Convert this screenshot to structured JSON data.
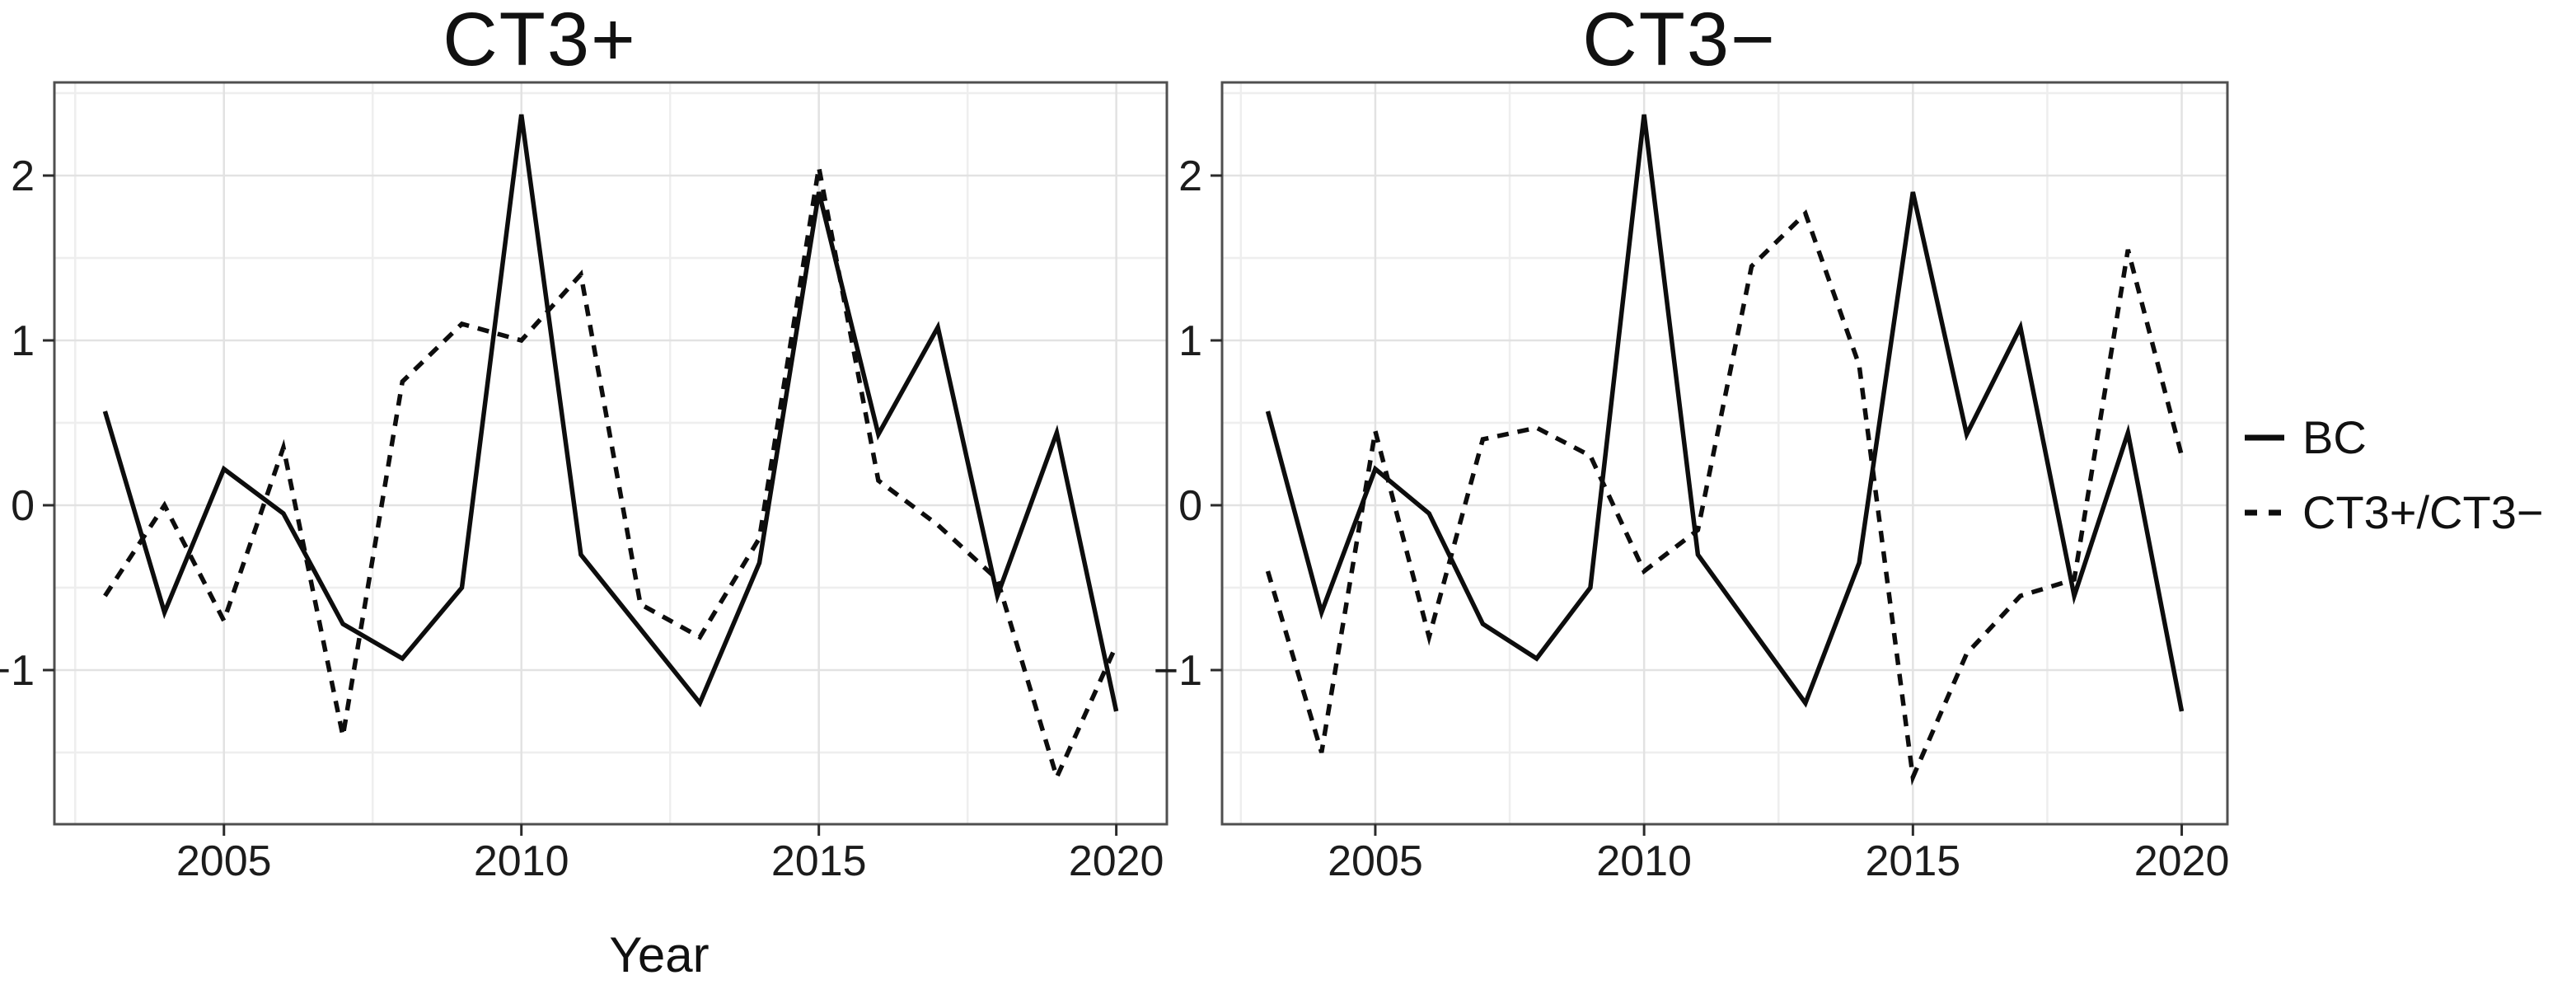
{
  "figure": {
    "background": "#ffffff",
    "line_color": "#0d0d0d",
    "grid_major_color": "#e2e2e2",
    "grid_minor_color": "#eeeeee",
    "panel_border_color": "#4f4f4f",
    "tick_color": "#2b2b2b",
    "text_color": "#1c1c1c"
  },
  "legend": {
    "items": [
      {
        "label": "BC",
        "style": "solid"
      },
      {
        "label": "CT3+/CT3−",
        "style": "dashed"
      }
    ]
  },
  "chart_data": [
    {
      "type": "line",
      "title": "CT3+",
      "xlabel": "Year",
      "ylabel": "",
      "x": [
        2003,
        2004,
        2005,
        2006,
        2007,
        2008,
        2009,
        2010,
        2011,
        2012,
        2013,
        2014,
        2015,
        2016,
        2017,
        2018,
        2019,
        2020
      ],
      "series": [
        {
          "name": "BC",
          "style": "solid",
          "values": [
            0.57,
            -0.65,
            0.22,
            -0.05,
            -0.72,
            -0.93,
            -0.5,
            2.37,
            -0.3,
            -0.75,
            -1.2,
            -0.35,
            1.9,
            0.43,
            1.08,
            -0.55,
            0.44,
            -1.25
          ]
        },
        {
          "name": "CT3+/CT3−",
          "style": "dashed",
          "values": [
            -0.55,
            0.0,
            -0.7,
            0.35,
            -1.4,
            0.75,
            1.1,
            1.0,
            1.4,
            -0.6,
            -0.8,
            -0.2,
            2.05,
            0.15,
            -0.12,
            -0.45,
            -1.65,
            -0.85
          ]
        }
      ],
      "xlim": [
        2002.15,
        2020.85
      ],
      "ylim": [
        -1.935,
        2.565
      ],
      "x_ticks": [
        2005,
        2010,
        2015,
        2020
      ],
      "x_tick_labels": [
        "2005",
        "2010",
        "2015",
        "2020"
      ],
      "x_minor_ticks": [
        2002.5,
        2007.5,
        2012.5,
        2017.5
      ],
      "y_ticks": [
        -1,
        0,
        1,
        2
      ],
      "y_tick_labels": [
        "−1",
        "0",
        "1",
        "2"
      ],
      "y_minor_ticks": [
        -1.5,
        -0.5,
        0.5,
        1.5,
        2.5
      ],
      "grid": true,
      "legend_position": "right"
    },
    {
      "type": "line",
      "title": "CT3−",
      "xlabel": "Year",
      "ylabel": "",
      "x": [
        2003,
        2004,
        2005,
        2006,
        2007,
        2008,
        2009,
        2010,
        2011,
        2012,
        2013,
        2014,
        2015,
        2016,
        2017,
        2018,
        2019,
        2020
      ],
      "series": [
        {
          "name": "BC",
          "style": "solid",
          "values": [
            0.57,
            -0.65,
            0.22,
            -0.05,
            -0.72,
            -0.93,
            -0.5,
            2.37,
            -0.3,
            -0.75,
            -1.2,
            -0.35,
            1.9,
            0.43,
            1.08,
            -0.55,
            0.44,
            -1.25
          ]
        },
        {
          "name": "CT3+/CT3−",
          "style": "dashed",
          "values": [
            -0.4,
            -1.5,
            0.45,
            -0.8,
            0.4,
            0.47,
            0.3,
            -0.4,
            -0.15,
            1.45,
            1.77,
            0.85,
            -1.65,
            -0.9,
            -0.55,
            -0.45,
            1.55,
            0.3
          ]
        }
      ],
      "xlim": [
        2002.15,
        2020.85
      ],
      "ylim": [
        -1.935,
        2.565
      ],
      "x_ticks": [
        2005,
        2010,
        2015,
        2020
      ],
      "x_tick_labels": [
        "2005",
        "2010",
        "2015",
        "2020"
      ],
      "x_minor_ticks": [
        2002.5,
        2007.5,
        2012.5,
        2017.5
      ],
      "y_ticks": [
        -1,
        0,
        1,
        2
      ],
      "y_tick_labels": [
        "−1",
        "0",
        "1",
        "2"
      ],
      "y_minor_ticks": [
        -1.5,
        -0.5,
        0.5,
        1.5,
        2.5
      ],
      "grid": true,
      "legend_position": "right"
    }
  ]
}
